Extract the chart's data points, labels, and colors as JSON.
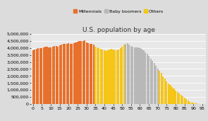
{
  "title": "U.S. population by age",
  "background_color": "#dcdcdc",
  "plot_bg_color": "#e8e8e8",
  "ylabel_fontsize": 4.5,
  "xlabel_fontsize": 4.5,
  "title_fontsize": 6.5,
  "ages": [
    0,
    1,
    2,
    3,
    4,
    5,
    6,
    7,
    8,
    9,
    10,
    11,
    12,
    13,
    14,
    15,
    16,
    17,
    18,
    19,
    20,
    21,
    22,
    23,
    24,
    25,
    26,
    27,
    28,
    29,
    30,
    31,
    32,
    33,
    34,
    35,
    36,
    37,
    38,
    39,
    40,
    41,
    42,
    43,
    44,
    45,
    46,
    47,
    48,
    49,
    50,
    51,
    52,
    53,
    54,
    55,
    56,
    57,
    58,
    59,
    60,
    61,
    62,
    63,
    64,
    65,
    66,
    67,
    68,
    69,
    70,
    71,
    72,
    73,
    74,
    75,
    76,
    77,
    78,
    79,
    80,
    81,
    82,
    83,
    84,
    85,
    86,
    87,
    88,
    89,
    90,
    91,
    92,
    93,
    94,
    95,
    96
  ],
  "values": [
    3850000,
    3900000,
    3950000,
    3980000,
    3980000,
    4000000,
    4050000,
    4100000,
    4100000,
    4050000,
    4050000,
    4100000,
    4150000,
    4150000,
    4100000,
    4200000,
    4250000,
    4300000,
    4300000,
    4280000,
    4350000,
    4300000,
    4280000,
    4350000,
    4400000,
    4450000,
    4500000,
    4480000,
    4500000,
    4520000,
    4380000,
    4350000,
    4300000,
    4280000,
    4250000,
    4100000,
    4050000,
    4000000,
    3950000,
    3900000,
    3850000,
    3800000,
    3820000,
    3900000,
    3950000,
    3900000,
    3850000,
    3850000,
    3900000,
    4000000,
    4100000,
    4250000,
    4300000,
    4350000,
    4250000,
    4150000,
    4100000,
    4050000,
    4050000,
    4050000,
    4000000,
    3950000,
    3850000,
    3700000,
    3600000,
    3450000,
    3250000,
    3100000,
    2950000,
    2750000,
    2500000,
    2350000,
    2200000,
    1950000,
    1800000,
    1600000,
    1450000,
    1350000,
    1200000,
    1100000,
    950000,
    850000,
    750000,
    650000,
    550000,
    450000,
    350000,
    250000,
    175000,
    120000,
    80000,
    55000,
    35000,
    20000,
    12000,
    8000,
    4000
  ],
  "millennials_range": [
    0,
    34
  ],
  "baby_boomers_range": [
    52,
    70
  ],
  "millennials_color": "#e8702a",
  "baby_boomers_color": "#b8b8b8",
  "others_color": "#f5c518",
  "ylim": [
    0,
    5000000
  ],
  "yticks": [
    0,
    500000,
    1000000,
    1500000,
    2000000,
    2500000,
    3000000,
    3500000,
    4000000,
    4500000,
    5000000
  ],
  "xticks": [
    0,
    5,
    10,
    15,
    20,
    25,
    30,
    35,
    40,
    45,
    50,
    55,
    60,
    65,
    70,
    75,
    80,
    85,
    90,
    95
  ],
  "ytick_labels": [
    "0",
    "500,000",
    "1,000,000",
    "1,500,000",
    "2,000,000",
    "2,500,000",
    "3,000,000",
    "3,500,000",
    "4,000,000",
    "4,500,000",
    "5,000,000"
  ]
}
